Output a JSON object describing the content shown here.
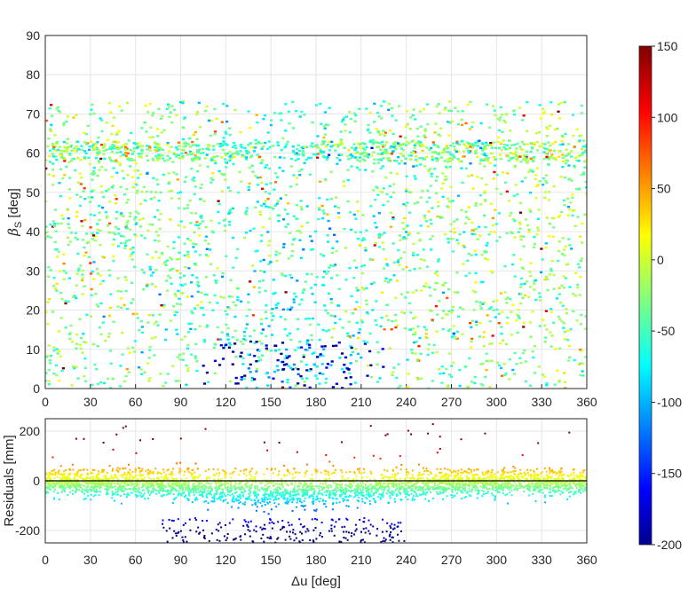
{
  "chart_data": [
    {
      "type": "scatter",
      "xlabel": "",
      "ylabel": "β_S [deg]",
      "ylabel_main": "β",
      "ylabel_sub": "S",
      "ylabel_unit": " [deg]",
      "xlim": [
        0,
        360
      ],
      "ylim": [
        0,
        90
      ],
      "xticks": [
        "0",
        "30",
        "60",
        "90",
        "120",
        "150",
        "180",
        "210",
        "240",
        "270",
        "300",
        "330",
        "360"
      ],
      "yticks": [
        "0",
        "10",
        "20",
        "30",
        "40",
        "50",
        "60",
        "70",
        "80",
        "90"
      ],
      "grid": true,
      "color_by": "residual",
      "description": "Dense band of points for beta between ~0 and ~73 deg across all delta-u; most points near 0 to -80 residual (green/cyan); strongest negative residuals (dark blue) concentrated near delta-u 130-200 and low beta; sparse positive residuals (orange/red) scattered.",
      "beta_max": 73,
      "low_residual_cluster": {
        "u_center": 165,
        "u_halfwidth": 45,
        "beta_max": 12
      }
    },
    {
      "type": "scatter",
      "xlabel": "Δu [deg]",
      "ylabel": "Residuals [mm]",
      "xlim": [
        0,
        360
      ],
      "ylim": [
        -250,
        250
      ],
      "xticks": [
        "0",
        "30",
        "60",
        "90",
        "120",
        "150",
        "180",
        "210",
        "240",
        "270",
        "300",
        "330",
        "360"
      ],
      "yticks": [
        "-200",
        "0",
        "200"
      ],
      "grid": true,
      "zero_line": 0,
      "color_by": "residual",
      "description": "Residuals mostly between 0 and -100 mm, a trough reaching about -250 mm centered near delta-u 160 deg; few positive outliers up to ~230 mm."
    },
    {
      "type": "colorbar",
      "colormap": "jet",
      "clim": [
        -200,
        150
      ],
      "ticks": [
        "150",
        "100",
        "50",
        "0",
        "-50",
        "-100",
        "-150",
        "-200"
      ]
    }
  ]
}
